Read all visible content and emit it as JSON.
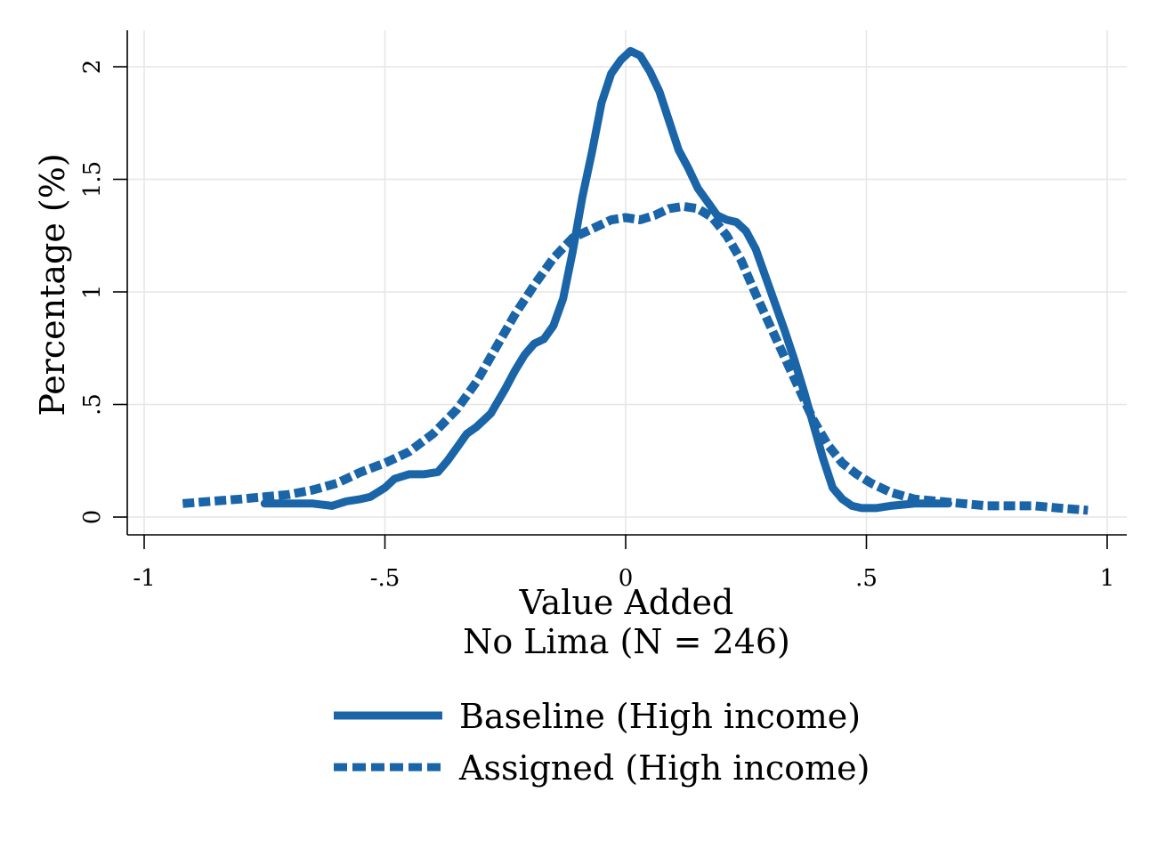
{
  "chart_data": {
    "type": "line",
    "title": "",
    "xlabel": "Value Added",
    "subtitle": "No Lima (N = 246)",
    "ylabel": "Percentage (%)",
    "xlim": [
      -1,
      1
    ],
    "ylim": [
      0,
      2
    ],
    "xticks": [
      {
        "value": -1,
        "label": "-1"
      },
      {
        "value": -0.5,
        "label": "-.5"
      },
      {
        "value": 0,
        "label": "0"
      },
      {
        "value": 0.5,
        "label": ".5"
      },
      {
        "value": 1,
        "label": "1"
      }
    ],
    "yticks": [
      {
        "value": 0,
        "label": "0"
      },
      {
        "value": 0.5,
        "label": ".5"
      },
      {
        "value": 1,
        "label": "1"
      },
      {
        "value": 1.5,
        "label": "1.5"
      },
      {
        "value": 2,
        "label": "2"
      }
    ],
    "grid": true,
    "legend_position": "bottom",
    "color": "#1a64a8",
    "series": [
      {
        "name": "Baseline (High income)",
        "style": "solid",
        "x": [
          -0.75,
          -0.7,
          -0.65,
          -0.61,
          -0.58,
          -0.55,
          -0.53,
          -0.5,
          -0.48,
          -0.45,
          -0.42,
          -0.39,
          -0.37,
          -0.35,
          -0.33,
          -0.31,
          -0.28,
          -0.25,
          -0.23,
          -0.21,
          -0.19,
          -0.17,
          -0.15,
          -0.13,
          -0.11,
          -0.09,
          -0.07,
          -0.05,
          -0.03,
          -0.01,
          0.01,
          0.03,
          0.05,
          0.07,
          0.09,
          0.11,
          0.13,
          0.15,
          0.17,
          0.19,
          0.21,
          0.23,
          0.25,
          0.27,
          0.29,
          0.31,
          0.33,
          0.35,
          0.37,
          0.39,
          0.41,
          0.43,
          0.45,
          0.47,
          0.49,
          0.52,
          0.55,
          0.6,
          0.65,
          0.67
        ],
        "y": [
          0.06,
          0.06,
          0.06,
          0.05,
          0.07,
          0.08,
          0.09,
          0.13,
          0.17,
          0.19,
          0.19,
          0.2,
          0.25,
          0.31,
          0.37,
          0.4,
          0.46,
          0.57,
          0.65,
          0.72,
          0.77,
          0.79,
          0.85,
          0.97,
          1.18,
          1.42,
          1.62,
          1.84,
          1.97,
          2.03,
          2.07,
          2.05,
          1.98,
          1.89,
          1.76,
          1.63,
          1.55,
          1.46,
          1.4,
          1.34,
          1.32,
          1.31,
          1.27,
          1.19,
          1.07,
          0.95,
          0.83,
          0.7,
          0.56,
          0.41,
          0.26,
          0.13,
          0.08,
          0.05,
          0.04,
          0.04,
          0.05,
          0.06,
          0.06,
          0.06
        ]
      },
      {
        "name": "Assigned (High income)",
        "style": "dashed",
        "x": [
          -0.92,
          -0.86,
          -0.8,
          -0.75,
          -0.7,
          -0.65,
          -0.6,
          -0.55,
          -0.5,
          -0.45,
          -0.4,
          -0.35,
          -0.31,
          -0.27,
          -0.23,
          -0.19,
          -0.15,
          -0.11,
          -0.07,
          -0.03,
          0.0,
          0.03,
          0.06,
          0.09,
          0.12,
          0.15,
          0.18,
          0.21,
          0.24,
          0.27,
          0.3,
          0.33,
          0.36,
          0.39,
          0.42,
          0.45,
          0.48,
          0.51,
          0.55,
          0.6,
          0.65,
          0.7,
          0.75,
          0.8,
          0.85,
          0.9,
          0.96
        ],
        "y": [
          0.06,
          0.07,
          0.08,
          0.09,
          0.1,
          0.12,
          0.15,
          0.2,
          0.24,
          0.29,
          0.37,
          0.48,
          0.6,
          0.75,
          0.9,
          1.03,
          1.15,
          1.24,
          1.28,
          1.32,
          1.33,
          1.32,
          1.34,
          1.37,
          1.38,
          1.37,
          1.33,
          1.25,
          1.14,
          0.99,
          0.85,
          0.71,
          0.57,
          0.43,
          0.32,
          0.24,
          0.19,
          0.15,
          0.11,
          0.08,
          0.07,
          0.06,
          0.05,
          0.05,
          0.05,
          0.04,
          0.03
        ]
      }
    ]
  }
}
